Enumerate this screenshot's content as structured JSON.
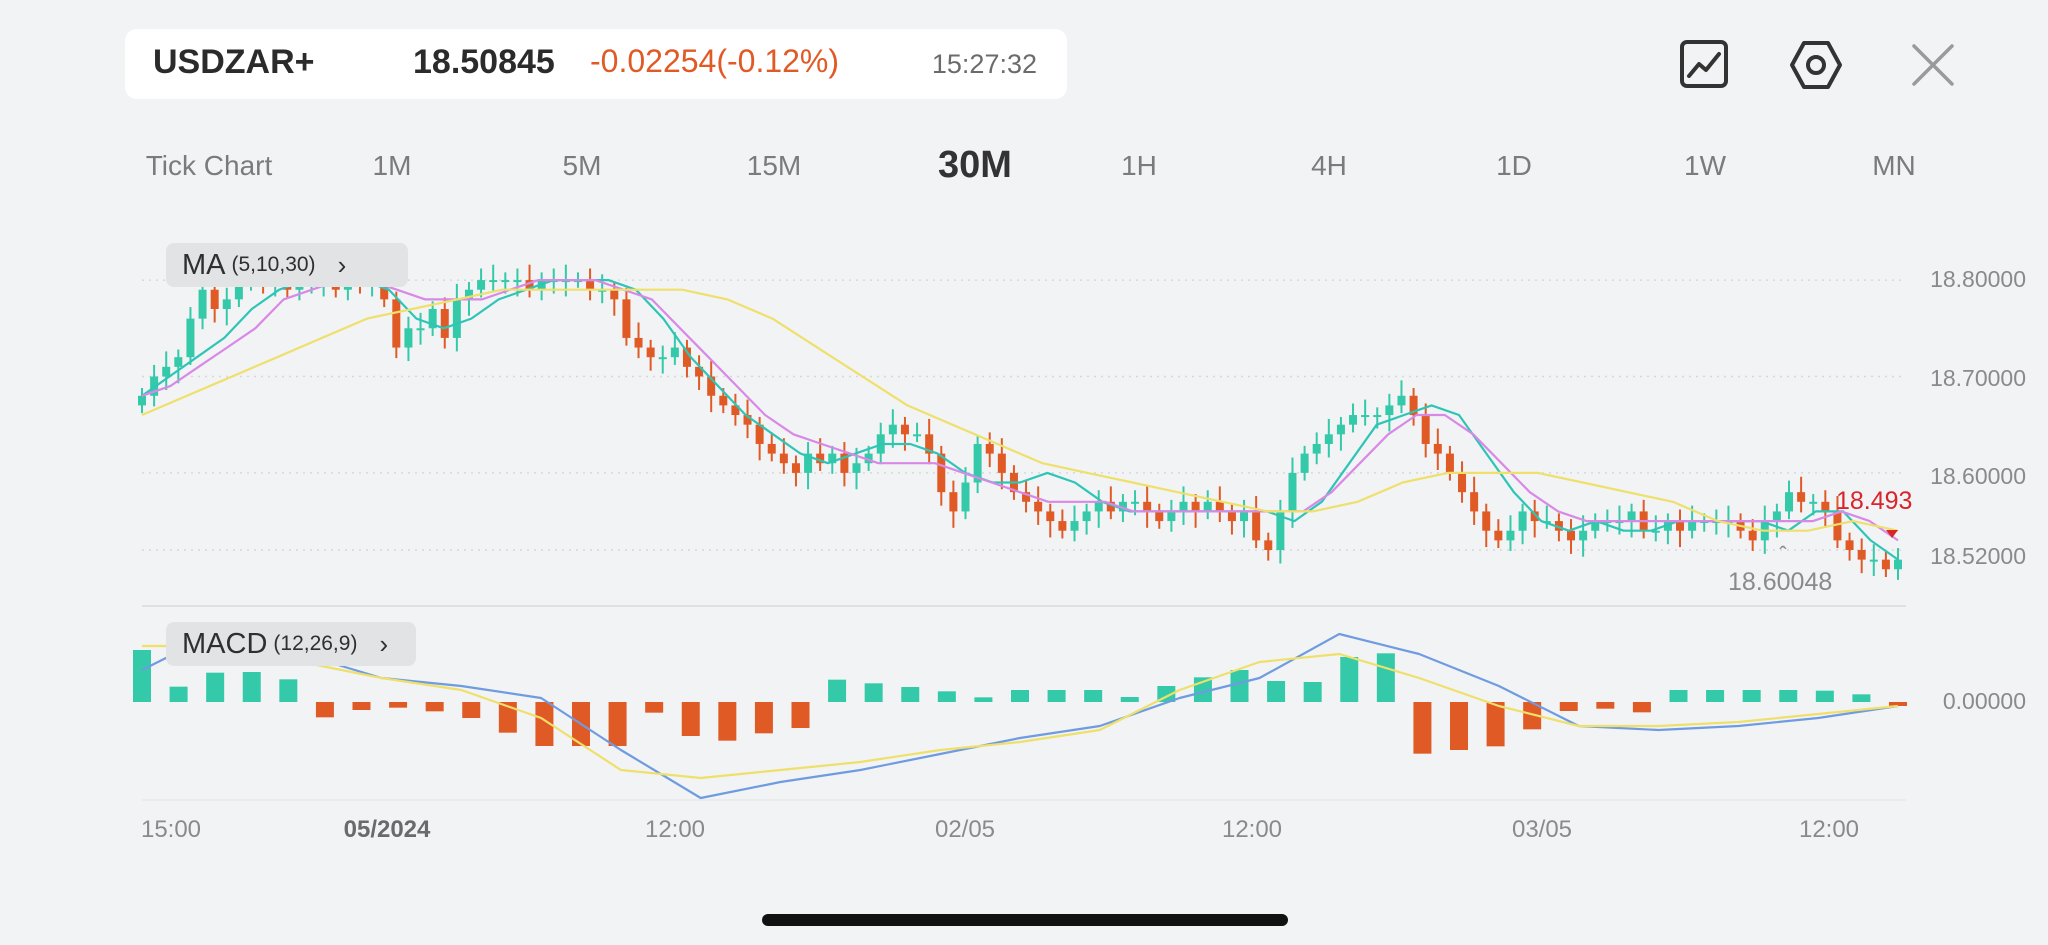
{
  "header": {
    "symbol": "USDZAR+",
    "price": "18.50845",
    "change": "-0.02254(-0.12%)",
    "time": "15:27:32"
  },
  "toolbar": {
    "icons": [
      "chart-type-icon",
      "settings-icon",
      "close-icon"
    ]
  },
  "timeframes": [
    "Tick Chart",
    "1M",
    "5M",
    "15M",
    "30M",
    "1H",
    "4H",
    "1D",
    "1W",
    "MN"
  ],
  "active_timeframe": "30M",
  "indicators": {
    "ma": {
      "name": "MA",
      "params": "(5,10,30)",
      "arrow": "›"
    },
    "macd": {
      "name": "MACD",
      "params": "(12,26,9)",
      "arrow": "›"
    }
  },
  "labels": {
    "last_price": "18.493",
    "marker_price": "18.60048",
    "marker_arrow": "ˆ"
  },
  "colors": {
    "up": "#34c9a8",
    "down": "#e05a26",
    "ma5": "#2ec5b6",
    "ma10": "#d889e6",
    "ma30": "#eee06a",
    "dif": "#6f9be0",
    "dea": "#eee06a",
    "last_price": "#d8242a"
  },
  "chart_data": [
    {
      "type": "candlestick",
      "title": "MA (5,10,30)",
      "y_ticks": [
        "18.80000",
        "18.70000",
        "18.60000",
        "18.52000"
      ],
      "x_ticks": [
        "15:00",
        "05/2024",
        "12:00",
        "02/05",
        "12:00",
        "03/05",
        "12:00"
      ],
      "grid": true,
      "close_approx": [
        18.68,
        18.7,
        18.71,
        18.72,
        18.76,
        18.79,
        18.77,
        18.78,
        18.8,
        18.81,
        18.8,
        18.8,
        18.79,
        18.8,
        18.8,
        18.8,
        18.79,
        18.81,
        18.8,
        18.8,
        18.78,
        18.73,
        18.75,
        18.75,
        18.77,
        18.74,
        18.78,
        18.79,
        18.8,
        18.8,
        18.8,
        18.8,
        18.79,
        18.8,
        18.8,
        18.8,
        18.8,
        18.79,
        18.79,
        18.78,
        18.74,
        18.73,
        18.72,
        18.72,
        18.73,
        18.71,
        18.7,
        18.68,
        18.67,
        18.66,
        18.65,
        18.63,
        18.62,
        18.61,
        18.6,
        18.62,
        18.61,
        18.62,
        18.6,
        18.61,
        18.62,
        18.64,
        18.65,
        18.64,
        18.64,
        18.62,
        18.58,
        18.56,
        18.59,
        18.63,
        18.62,
        18.6,
        18.58,
        18.57,
        18.56,
        18.55,
        18.54,
        18.55,
        18.56,
        18.57,
        18.56,
        18.57,
        18.57,
        18.56,
        18.55,
        18.56,
        18.57,
        18.56,
        18.57,
        18.56,
        18.55,
        18.56,
        18.53,
        18.52,
        18.56,
        18.6,
        18.62,
        18.63,
        18.64,
        18.65,
        18.66,
        18.66,
        18.66,
        18.67,
        18.68,
        18.66,
        18.63,
        18.62,
        18.6,
        18.58,
        18.56,
        18.54,
        18.53,
        18.54,
        18.56,
        18.55,
        18.55,
        18.54,
        18.53,
        18.54,
        18.55,
        18.55,
        18.55,
        18.56,
        18.54,
        18.54,
        18.55,
        18.54,
        18.55,
        18.55,
        18.55,
        18.55,
        18.54,
        18.53,
        18.55,
        18.56,
        18.58,
        18.57,
        18.57,
        18.56,
        18.53,
        18.52,
        18.51,
        18.51,
        18.5,
        18.51
      ],
      "series": [
        {
          "name": "MA5",
          "values_approx": [
            18.68,
            18.7,
            18.72,
            18.74,
            18.77,
            18.79,
            18.8,
            18.8,
            18.8,
            18.79,
            18.76,
            18.75,
            18.76,
            18.78,
            18.79,
            18.8,
            18.8,
            18.8,
            18.79,
            18.76,
            18.72,
            18.69,
            18.66,
            18.64,
            18.62,
            18.61,
            18.62,
            18.63,
            18.63,
            18.62,
            18.6,
            18.59,
            18.59,
            18.6,
            18.59,
            18.57,
            18.56,
            18.56,
            18.56,
            18.56,
            18.56,
            18.56,
            18.55,
            18.57,
            18.61,
            18.65,
            18.66,
            18.67,
            18.66,
            18.62,
            18.58,
            18.55,
            18.54,
            18.55,
            18.54,
            18.54,
            18.55,
            18.55,
            18.55,
            18.55,
            18.54,
            18.56,
            18.56,
            18.53,
            18.51
          ]
        },
        {
          "name": "MA10",
          "values_approx": [
            18.68,
            18.69,
            18.71,
            18.73,
            18.75,
            18.78,
            18.79,
            18.8,
            18.8,
            18.79,
            18.78,
            18.78,
            18.78,
            18.79,
            18.8,
            18.8,
            18.8,
            18.79,
            18.78,
            18.75,
            18.72,
            18.69,
            18.66,
            18.64,
            18.63,
            18.62,
            18.61,
            18.61,
            18.61,
            18.6,
            18.59,
            18.58,
            18.57,
            18.57,
            18.57,
            18.56,
            18.56,
            18.56,
            18.56,
            18.56,
            18.56,
            18.56,
            18.58,
            18.61,
            18.64,
            18.66,
            18.66,
            18.64,
            18.61,
            18.58,
            18.56,
            18.55,
            18.55,
            18.55,
            18.55,
            18.55,
            18.55,
            18.55,
            18.55,
            18.55,
            18.56,
            18.55,
            18.53
          ]
        },
        {
          "name": "MA30",
          "values_approx": [
            18.66,
            18.68,
            18.7,
            18.72,
            18.74,
            18.76,
            18.77,
            18.78,
            18.79,
            18.79,
            18.79,
            18.79,
            18.79,
            18.78,
            18.76,
            18.73,
            18.7,
            18.67,
            18.65,
            18.63,
            18.61,
            18.6,
            18.59,
            18.58,
            18.57,
            18.56,
            18.56,
            18.57,
            18.59,
            18.6,
            18.6,
            18.6,
            18.59,
            18.58,
            18.57,
            18.55,
            18.54,
            18.54,
            18.55,
            18.54
          ]
        }
      ]
    },
    {
      "type": "bar",
      "title": "MACD (12,26,9)",
      "y_ticks": [
        "0.00000"
      ],
      "histogram_sign_approx": [
        "+",
        "+",
        "+",
        "+",
        "+",
        "-",
        "-",
        "-",
        "-",
        "-",
        "-",
        "-",
        "-",
        "-",
        "-",
        "-",
        "-",
        "-",
        "-",
        "+",
        "+",
        "+",
        "+",
        "+",
        "+",
        "+",
        "+",
        "+",
        "+",
        "+",
        "+",
        "+",
        "+",
        "+",
        "+",
        "-",
        "-",
        "-",
        "-",
        "-",
        "-",
        "-",
        "+",
        "+",
        "+",
        "+",
        "+",
        "+",
        "-"
      ],
      "series": [
        {
          "name": "DIF",
          "values_approx": [
            0.008,
            0.018,
            0.012,
            0.006,
            0.004,
            0.001,
            -0.012,
            -0.024,
            -0.02,
            -0.017,
            -0.013,
            -0.009,
            -0.006,
            0.001,
            0.006,
            0.017,
            0.012,
            0.004,
            -0.006,
            -0.007,
            -0.006,
            -0.004,
            -0.001
          ]
        },
        {
          "name": "DEA",
          "values_approx": [
            0.014,
            0.014,
            0.01,
            0.006,
            0.003,
            -0.004,
            -0.017,
            -0.019,
            -0.017,
            -0.015,
            -0.012,
            -0.01,
            -0.007,
            0.003,
            0.01,
            0.012,
            0.006,
            -0.001,
            -0.006,
            -0.006,
            -0.005,
            -0.003,
            -0.001
          ]
        }
      ]
    }
  ]
}
